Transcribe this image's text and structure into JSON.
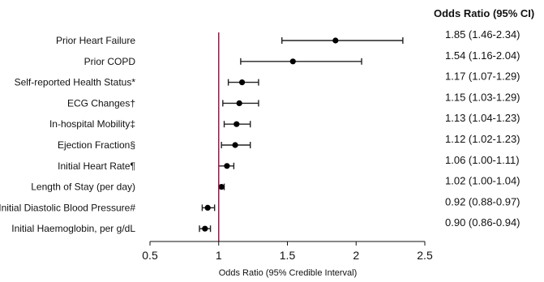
{
  "chart_data": {
    "type": "forest",
    "xlabel": "Odds Ratio (95% Credible Interval)",
    "right_header": "Odds Ratio (95% CI)",
    "xlim": [
      0.5,
      2.5
    ],
    "xticks": [
      0.5,
      1,
      1.5,
      2,
      2.5
    ],
    "xtick_labels": [
      "0.5",
      "1",
      "1.5",
      "2",
      "2.5"
    ],
    "reference_line": 1,
    "reference_line_color": "#a0164a",
    "marker_color": "#000000",
    "grid": false,
    "rows": [
      {
        "label": "Prior Heart Failure",
        "or": 1.85,
        "lo": 1.46,
        "hi": 2.34,
        "text": "1.85 (1.46-2.34)"
      },
      {
        "label": "Prior COPD",
        "or": 1.54,
        "lo": 1.16,
        "hi": 2.04,
        "text": "1.54 (1.16-2.04)"
      },
      {
        "label": "Self-reported Health Status*",
        "or": 1.17,
        "lo": 1.07,
        "hi": 1.29,
        "text": "1.17 (1.07-1.29)"
      },
      {
        "label": "ECG Changes†",
        "or": 1.15,
        "lo": 1.03,
        "hi": 1.29,
        "text": "1.15 (1.03-1.29)"
      },
      {
        "label": "In-hospital Mobility‡",
        "or": 1.13,
        "lo": 1.04,
        "hi": 1.23,
        "text": "1.13 (1.04-1.23)"
      },
      {
        "label": "Ejection Fraction§",
        "or": 1.12,
        "lo": 1.02,
        "hi": 1.23,
        "text": "1.12 (1.02-1.23)"
      },
      {
        "label": "Initial Heart Rate¶",
        "or": 1.06,
        "lo": 1.0,
        "hi": 1.11,
        "text": "1.06 (1.00-1.11)"
      },
      {
        "label": "Length of Stay (per day)",
        "or": 1.02,
        "lo": 1.0,
        "hi": 1.04,
        "text": "1.02 (1.00-1.04)"
      },
      {
        "label": "Initial Diastolic Blood Pressure#",
        "or": 0.92,
        "lo": 0.88,
        "hi": 0.97,
        "text": "0.92 (0.88-0.97)"
      },
      {
        "label": "Initial Haemoglobin, per g/dL",
        "or": 0.9,
        "lo": 0.86,
        "hi": 0.94,
        "text": "0.90 (0.86-0.94)"
      }
    ]
  }
}
